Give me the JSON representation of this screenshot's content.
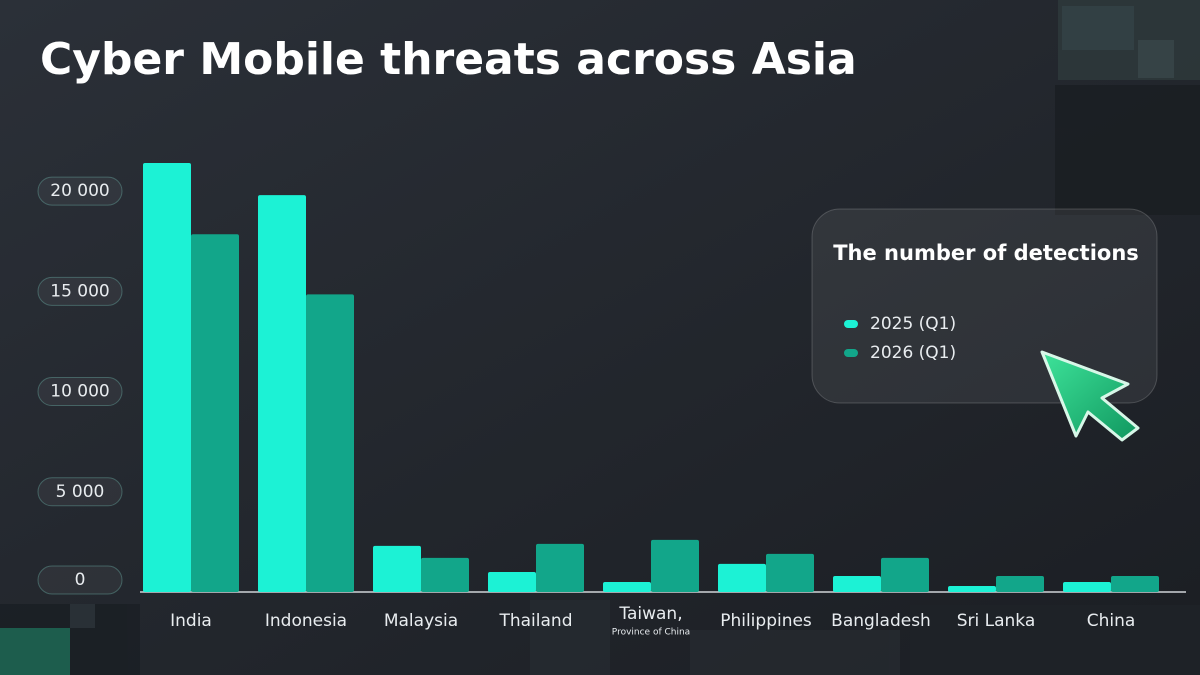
{
  "chart_data": {
    "type": "bar",
    "title": "Cyber Mobile threats across Asia",
    "legend_title": "The number of detections",
    "categories": [
      "India",
      "Indonesia",
      "Malaysia",
      "Thailand",
      "Taiwan,",
      "Philippines",
      "Bangladesh",
      "Sri Lanka",
      "China"
    ],
    "category_sublabels": [
      null,
      null,
      null,
      null,
      "Province of China",
      null,
      null,
      null,
      null
    ],
    "series": [
      {
        "name": "2025 (Q1)",
        "color": "#1cf2d5",
        "values": [
          21400,
          19800,
          2300,
          1000,
          500,
          1400,
          800,
          300,
          500
        ]
      },
      {
        "name": "2026 (Q1)",
        "color": "#12a68a",
        "values": [
          17850,
          14850,
          1700,
          2400,
          2600,
          1900,
          1700,
          800,
          800
        ]
      }
    ],
    "ylim": [
      0,
      22000
    ],
    "yticks": [
      0,
      {
        "value": 5000,
        "label": "5 000"
      },
      {
        "value": 10000,
        "label": "10 000"
      },
      {
        "value": 15000,
        "label": "15 000"
      },
      {
        "value": 20000,
        "label": "20 000"
      }
    ],
    "legend_position": "right"
  }
}
